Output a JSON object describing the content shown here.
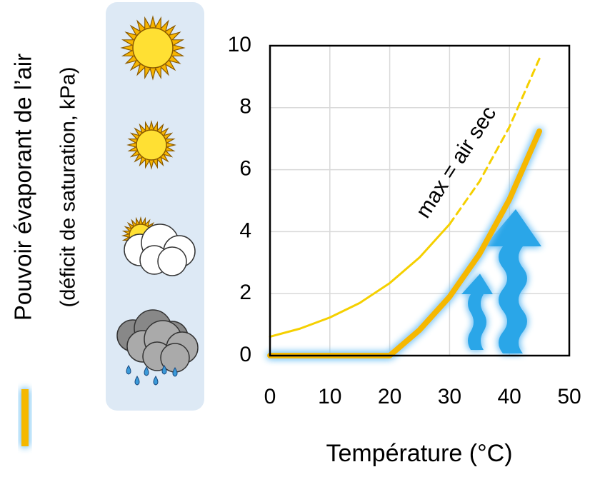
{
  "chart_data": {
    "type": "line",
    "ylabel": [
      "Pouvoir évaporant de l’air",
      "(déficit de saturation, kPa)"
    ],
    "xlabel": "Température (°C)",
    "annotation": "max = air sec",
    "x": [
      0,
      5,
      10,
      15,
      20,
      25,
      30,
      35,
      40,
      45
    ],
    "series": [
      {
        "color": "#f5b800",
        "width": 8,
        "values": [
          0,
          0,
          0,
          0,
          0,
          0.83,
          1.9,
          3.28,
          5.04,
          7.24
        ]
      },
      {
        "color": "#f5d000",
        "width": 3,
        "values": [
          0.61,
          0.87,
          1.23,
          1.7,
          2.34,
          3.17,
          4.24,
          null,
          null,
          null
        ]
      },
      {
        "color": "#f5d000",
        "width": 3,
        "dashed": true,
        "values": [
          null,
          null,
          null,
          null,
          null,
          null,
          4.24,
          5.62,
          7.38,
          9.58
        ]
      }
    ],
    "xlim": [
      0,
      50
    ],
    "xticks": [
      0,
      10,
      20,
      30,
      40,
      50
    ],
    "ylim": [
      0,
      10
    ],
    "yticks": [
      0,
      2,
      4,
      6,
      8,
      10
    ],
    "grid": true
  }
}
